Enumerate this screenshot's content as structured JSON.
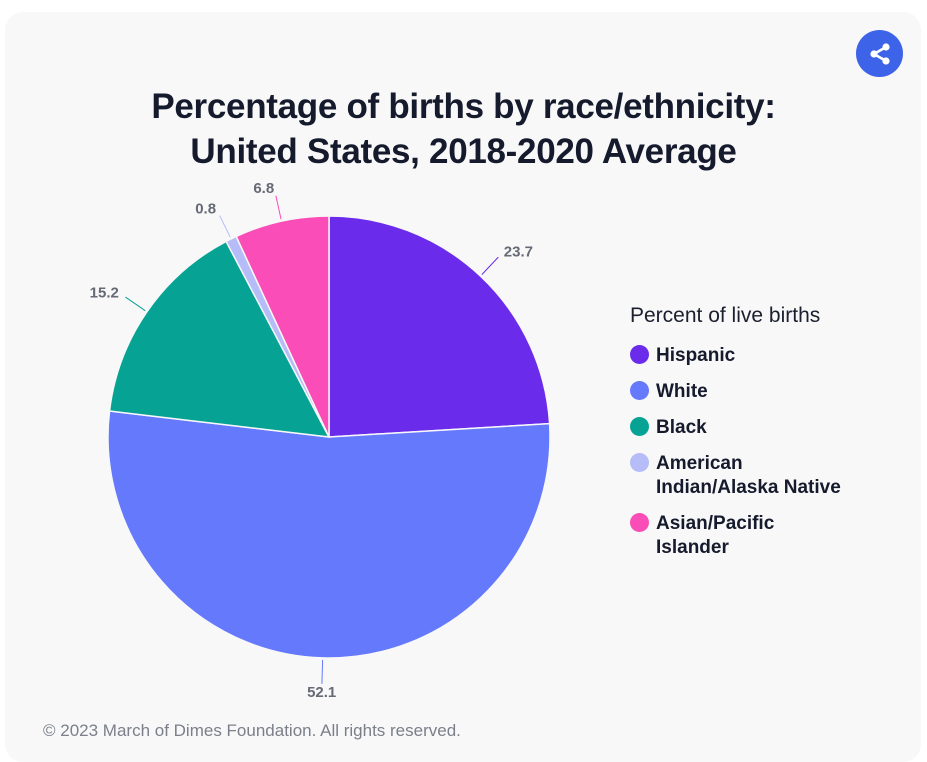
{
  "chart_data": {
    "type": "pie",
    "title": "Percentage of births by race/ethnicity: United States, 2018-2020 Average",
    "legend_title": "Percent of live births",
    "legend_position": "right",
    "slices": [
      {
        "label": "Hispanic",
        "value": 23.7,
        "color": "#6b2bea"
      },
      {
        "label": "White",
        "value": 52.1,
        "color": "#6479fc"
      },
      {
        "label": "Black",
        "value": 15.2,
        "color": "#06a394"
      },
      {
        "label": "American Indian/Alaska Native",
        "value": 0.8,
        "color": "#b5bcf8"
      },
      {
        "label": "Asian/Pacific Islander",
        "value": 6.8,
        "color": "#fb4db7"
      }
    ]
  },
  "title_line1": "Percentage of births by race/ethnicity:",
  "title_line2": "United States, 2018-2020 Average",
  "legend_labels": [
    "Hispanic",
    "White",
    "Black",
    "American Indian/Alaska Native",
    "Asian/Pacific Islander"
  ],
  "footer": "© 2023 March of Dimes Foundation. All rights reserved.",
  "share_icon": "share-icon"
}
